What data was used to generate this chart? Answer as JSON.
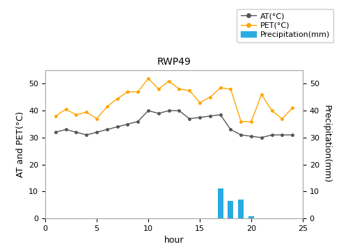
{
  "hours": [
    1,
    2,
    3,
    4,
    5,
    6,
    7,
    8,
    9,
    10,
    11,
    12,
    13,
    14,
    15,
    16,
    17,
    18,
    19,
    20,
    21,
    22,
    23,
    24
  ],
  "AT": [
    32,
    33,
    32,
    31,
    32,
    33,
    34,
    35,
    36,
    40,
    39,
    40,
    40,
    37,
    37.5,
    38,
    38.5,
    33,
    31,
    30.5,
    30,
    31,
    31,
    31
  ],
  "PET": [
    38,
    40.5,
    38.5,
    39.5,
    37,
    41.5,
    44.5,
    47,
    47,
    52,
    48,
    51,
    48,
    47.5,
    43,
    45,
    48.5,
    48,
    36,
    36,
    46,
    40,
    37,
    41
  ],
  "precip_hours": [
    17,
    18,
    19,
    20
  ],
  "precip_values": [
    11,
    6.5,
    7,
    0.8
  ],
  "AT_color": "#555555",
  "PET_color": "#FFA500",
  "precip_color": "#29ABE2",
  "title": "RWP49",
  "xlabel": "hour",
  "ylabel_left": "AT and PET(°C)",
  "ylabel_right": "Precipitation(mm)",
  "xlim": [
    0,
    25
  ],
  "ylim_left": [
    0,
    55
  ],
  "ylim_right": [
    0,
    55
  ],
  "xticks": [
    0,
    5,
    10,
    15,
    20,
    25
  ],
  "yticks_left": [
    0,
    10,
    20,
    30,
    40,
    50
  ],
  "yticks_right": [
    0,
    10,
    20,
    30,
    40,
    50
  ],
  "legend_AT": "AT(°C)",
  "legend_PET": "PET(°C)",
  "legend_precip": "Precipitation(mm)",
  "title_fontsize": 10,
  "label_fontsize": 9,
  "tick_fontsize": 8,
  "legend_fontsize": 8,
  "bar_width": 0.55,
  "spine_color": "#aaaaaa",
  "fig_width": 5.0,
  "fig_height": 3.61,
  "dpi": 100
}
